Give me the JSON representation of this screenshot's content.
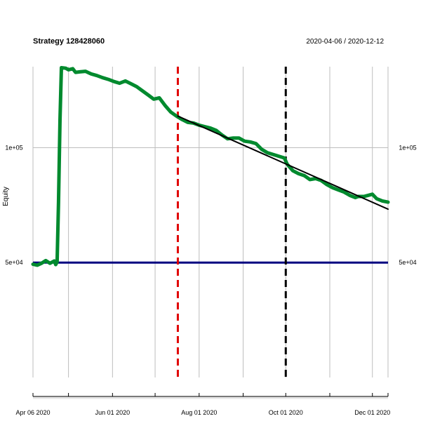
{
  "chart_data": {
    "type": "line",
    "title": "Strategy 128428060",
    "date_range": "2020-04-06 / 2020-12-12",
    "xlabel": "",
    "ylabel": "Equity",
    "x_range": [
      "2020-04-06",
      "2020-12-12"
    ],
    "y_scale": "log",
    "ylim": [
      25000,
      163000
    ],
    "grid": true,
    "x_ticks": [
      {
        "date": "2020-04-06",
        "label": "Apr 06 2020"
      },
      {
        "date": "2020-06-01",
        "label": "Jun 01 2020"
      },
      {
        "date": "2020-08-01",
        "label": "Aug 01 2020"
      },
      {
        "date": "2020-10-01",
        "label": "Oct 01 2020"
      },
      {
        "date": "2020-12-01",
        "label": "Dec 01 2020"
      }
    ],
    "x_gridlines": [
      "2020-04-06",
      "2020-05-01",
      "2020-06-01",
      "2020-07-01",
      "2020-08-01",
      "2020-09-01",
      "2020-10-01",
      "2020-11-01",
      "2020-12-01",
      "2020-12-12"
    ],
    "y_ticks": [
      {
        "value": 50000,
        "label": "5e+04"
      },
      {
        "value": 100000,
        "label": "1e+05"
      }
    ],
    "series": [
      {
        "color": "#008a2e",
        "points": [
          [
            "2020-04-06",
            49500
          ],
          [
            "2020-04-09",
            49200
          ],
          [
            "2020-04-12",
            49800
          ],
          [
            "2020-04-15",
            50600
          ],
          [
            "2020-04-18",
            49800
          ],
          [
            "2020-04-21",
            50500
          ],
          [
            "2020-04-22",
            49400
          ],
          [
            "2020-04-23",
            50200
          ],
          [
            "2020-04-24",
            72000
          ],
          [
            "2020-04-25",
            118000
          ],
          [
            "2020-04-26",
            162000
          ],
          [
            "2020-04-29",
            161500
          ],
          [
            "2020-05-01",
            160000
          ],
          [
            "2020-05-04",
            161000
          ],
          [
            "2020-05-06",
            157500
          ],
          [
            "2020-05-09",
            158000
          ],
          [
            "2020-05-13",
            158500
          ],
          [
            "2020-05-17",
            156000
          ],
          [
            "2020-05-21",
            154500
          ],
          [
            "2020-05-25",
            152500
          ],
          [
            "2020-05-29",
            151000
          ],
          [
            "2020-06-02",
            149000
          ],
          [
            "2020-06-06",
            147500
          ],
          [
            "2020-06-10",
            149500
          ],
          [
            "2020-06-14",
            147000
          ],
          [
            "2020-06-18",
            144500
          ],
          [
            "2020-06-22",
            141000
          ],
          [
            "2020-06-26",
            137500
          ],
          [
            "2020-06-30",
            134000
          ],
          [
            "2020-07-04",
            135000
          ],
          [
            "2020-07-08",
            129000
          ],
          [
            "2020-07-12",
            124000
          ],
          [
            "2020-07-16",
            121000
          ],
          [
            "2020-07-20",
            118500
          ],
          [
            "2020-07-24",
            116500
          ],
          [
            "2020-07-28",
            116000
          ],
          [
            "2020-08-01",
            114500
          ],
          [
            "2020-08-05",
            113500
          ],
          [
            "2020-08-09",
            112500
          ],
          [
            "2020-08-13",
            111000
          ],
          [
            "2020-08-17",
            108000
          ],
          [
            "2020-08-21",
            105500
          ],
          [
            "2020-08-25",
            106000
          ],
          [
            "2020-08-29",
            106000
          ],
          [
            "2020-09-02",
            104000
          ],
          [
            "2020-09-06",
            103500
          ],
          [
            "2020-09-10",
            102500
          ],
          [
            "2020-09-14",
            99000
          ],
          [
            "2020-09-18",
            97000
          ],
          [
            "2020-09-22",
            96000
          ],
          [
            "2020-09-26",
            95000
          ],
          [
            "2020-09-30",
            94000
          ],
          [
            "2020-10-02",
            90500
          ],
          [
            "2020-10-06",
            87000
          ],
          [
            "2020-10-10",
            85500
          ],
          [
            "2020-10-14",
            84500
          ],
          [
            "2020-10-18",
            82500
          ],
          [
            "2020-10-22",
            83000
          ],
          [
            "2020-10-26",
            82000
          ],
          [
            "2020-10-30",
            80000
          ],
          [
            "2020-11-03",
            78500
          ],
          [
            "2020-11-07",
            77500
          ],
          [
            "2020-11-11",
            76500
          ],
          [
            "2020-11-15",
            75000
          ],
          [
            "2020-11-19",
            74000
          ],
          [
            "2020-11-21",
            74500
          ],
          [
            "2020-11-25",
            74500
          ],
          [
            "2020-11-28",
            75000
          ],
          [
            "2020-12-01",
            75500
          ],
          [
            "2020-12-04",
            73500
          ],
          [
            "2020-12-08",
            72500
          ],
          [
            "2020-12-12",
            72000
          ]
        ]
      },
      {
        "type": "trend",
        "color": "#000000",
        "points": [
          [
            "2020-07-17",
            121000
          ],
          [
            "2020-12-12",
            69000
          ]
        ]
      }
    ],
    "reference_lines": [
      {
        "orientation": "horizontal",
        "value": 50000,
        "color": "#000080",
        "style": "solid"
      },
      {
        "orientation": "vertical",
        "date": "2020-07-17",
        "color": "#e00000",
        "style": "dashed"
      },
      {
        "orientation": "vertical",
        "date": "2020-10-01",
        "color": "#000000",
        "style": "dashed"
      }
    ]
  }
}
